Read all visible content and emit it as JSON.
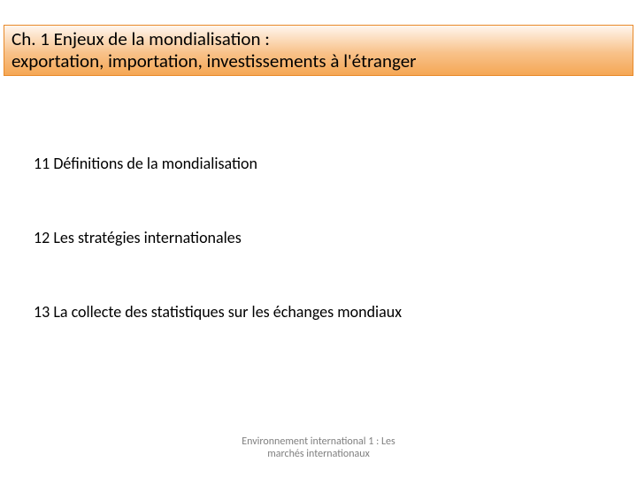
{
  "title": {
    "line1": "Ch. 1 Enjeux de la mondialisation :",
    "line2": "exportation, importation, investissements à l'étranger",
    "background_gradient_top": "#fff6ee",
    "background_gradient_mid": "#f8c28a",
    "background_gradient_bottom": "#f5a755",
    "border_color": "#e88a2a",
    "text_color": "#000000",
    "fontsize": 21
  },
  "items": [
    {
      "text": "11 Définitions de la mondialisation"
    },
    {
      "text": "12 Les stratégies internationales"
    },
    {
      "text": "13 La collecte des statistiques sur les échanges mondiaux"
    }
  ],
  "item_style": {
    "text_color": "#000000",
    "fontsize": 18
  },
  "footer": {
    "line1": "Environnement international 1 : Les",
    "line2": "marchés internationaux",
    "text_color": "#7f7f7f",
    "fontsize": 12
  },
  "page": {
    "background_color": "#ffffff"
  }
}
